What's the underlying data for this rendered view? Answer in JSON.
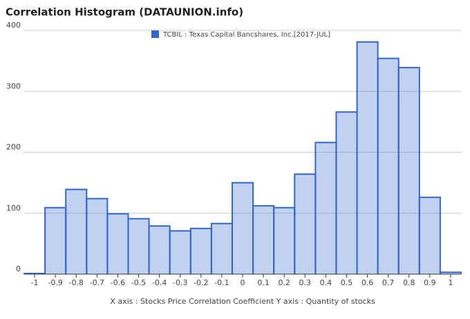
{
  "chart_data": {
    "type": "histogram",
    "title": "Correlation Histogram (DATAUNION.info)",
    "x_label": "X axis : Stocks Price Correlation Coefficient  Y axis : Quantity of stocks",
    "series": [
      {
        "name": "TCBIL : Texas Capital Bancshares, Inc.[2017-JUL]",
        "color": "#3366cc",
        "bins": [
          -1.05,
          -0.95,
          -0.85,
          -0.75,
          -0.65,
          -0.55,
          -0.45,
          -0.35,
          -0.25,
          -0.15,
          -0.05,
          0.05,
          0.15,
          0.25,
          0.35,
          0.45,
          0.55,
          0.65,
          0.75,
          0.85,
          0.95,
          1.05
        ],
        "values": [
          1,
          109,
          139,
          124,
          99,
          91,
          79,
          71,
          75,
          83,
          150,
          112,
          109,
          164,
          216,
          266,
          381,
          354,
          339,
          126,
          3
        ]
      }
    ],
    "xlim": [
      -1.05,
      1.05
    ],
    "xticks": [
      -1,
      -0.9,
      -0.8,
      -0.7,
      -0.6,
      -0.5,
      -0.4,
      -0.3,
      -0.2,
      -0.1,
      0,
      0.1,
      0.2,
      0.3,
      0.4,
      0.5,
      0.6,
      0.7,
      0.8,
      0.9,
      1
    ],
    "ylim": [
      0,
      400
    ],
    "yticks": [
      0,
      100,
      200,
      300,
      400
    ],
    "grid": true,
    "legend": "top"
  }
}
